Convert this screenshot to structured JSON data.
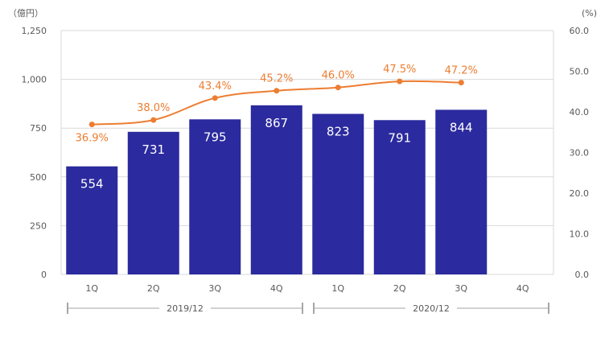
{
  "chart_data": {
    "type": "bar",
    "categories": [
      "1Q",
      "2Q",
      "3Q",
      "4Q",
      "1Q",
      "2Q",
      "3Q",
      "4Q"
    ],
    "groups": [
      {
        "label": "2019/12",
        "span": [
          0,
          3
        ]
      },
      {
        "label": "2020/12",
        "span": [
          4,
          7
        ]
      }
    ],
    "series": [
      {
        "type": "bar",
        "axis": "left",
        "color": "#2B2A9E",
        "values": [
          554,
          731,
          795,
          867,
          823,
          791,
          844,
          null
        ],
        "labels": [
          "554",
          "731",
          "795",
          "867",
          "823",
          "791",
          "844",
          ""
        ]
      },
      {
        "type": "line",
        "axis": "right",
        "color": "#ED7D31",
        "values": [
          36.9,
          38.0,
          43.4,
          45.2,
          46.0,
          47.5,
          47.2,
          null
        ],
        "labels": [
          "36.9%",
          "38.0%",
          "43.4%",
          "45.2%",
          "46.0%",
          "47.5%",
          "47.2%",
          ""
        ]
      }
    ],
    "y_left": {
      "unit": "（億円）",
      "range": [
        0,
        1250
      ],
      "ticks": [
        0,
        250,
        500,
        750,
        1000,
        1250
      ],
      "tick_labels": [
        "0",
        "250",
        "500",
        "750",
        "1,000",
        "1,250"
      ]
    },
    "y_right": {
      "unit": "(%)",
      "range": [
        0,
        60
      ],
      "ticks": [
        0,
        10,
        20,
        30,
        40,
        50,
        60
      ],
      "tick_labels": [
        "0.0",
        "10.0",
        "20.0",
        "30.0",
        "40.0",
        "50.0",
        "60.0"
      ]
    },
    "grid": true,
    "legend": "none",
    "colors": {
      "grid": "#D9D9D9",
      "axis_text": "#595959",
      "bar_text": "#FFFFFF",
      "bracket": "#A6A6A6"
    }
  }
}
